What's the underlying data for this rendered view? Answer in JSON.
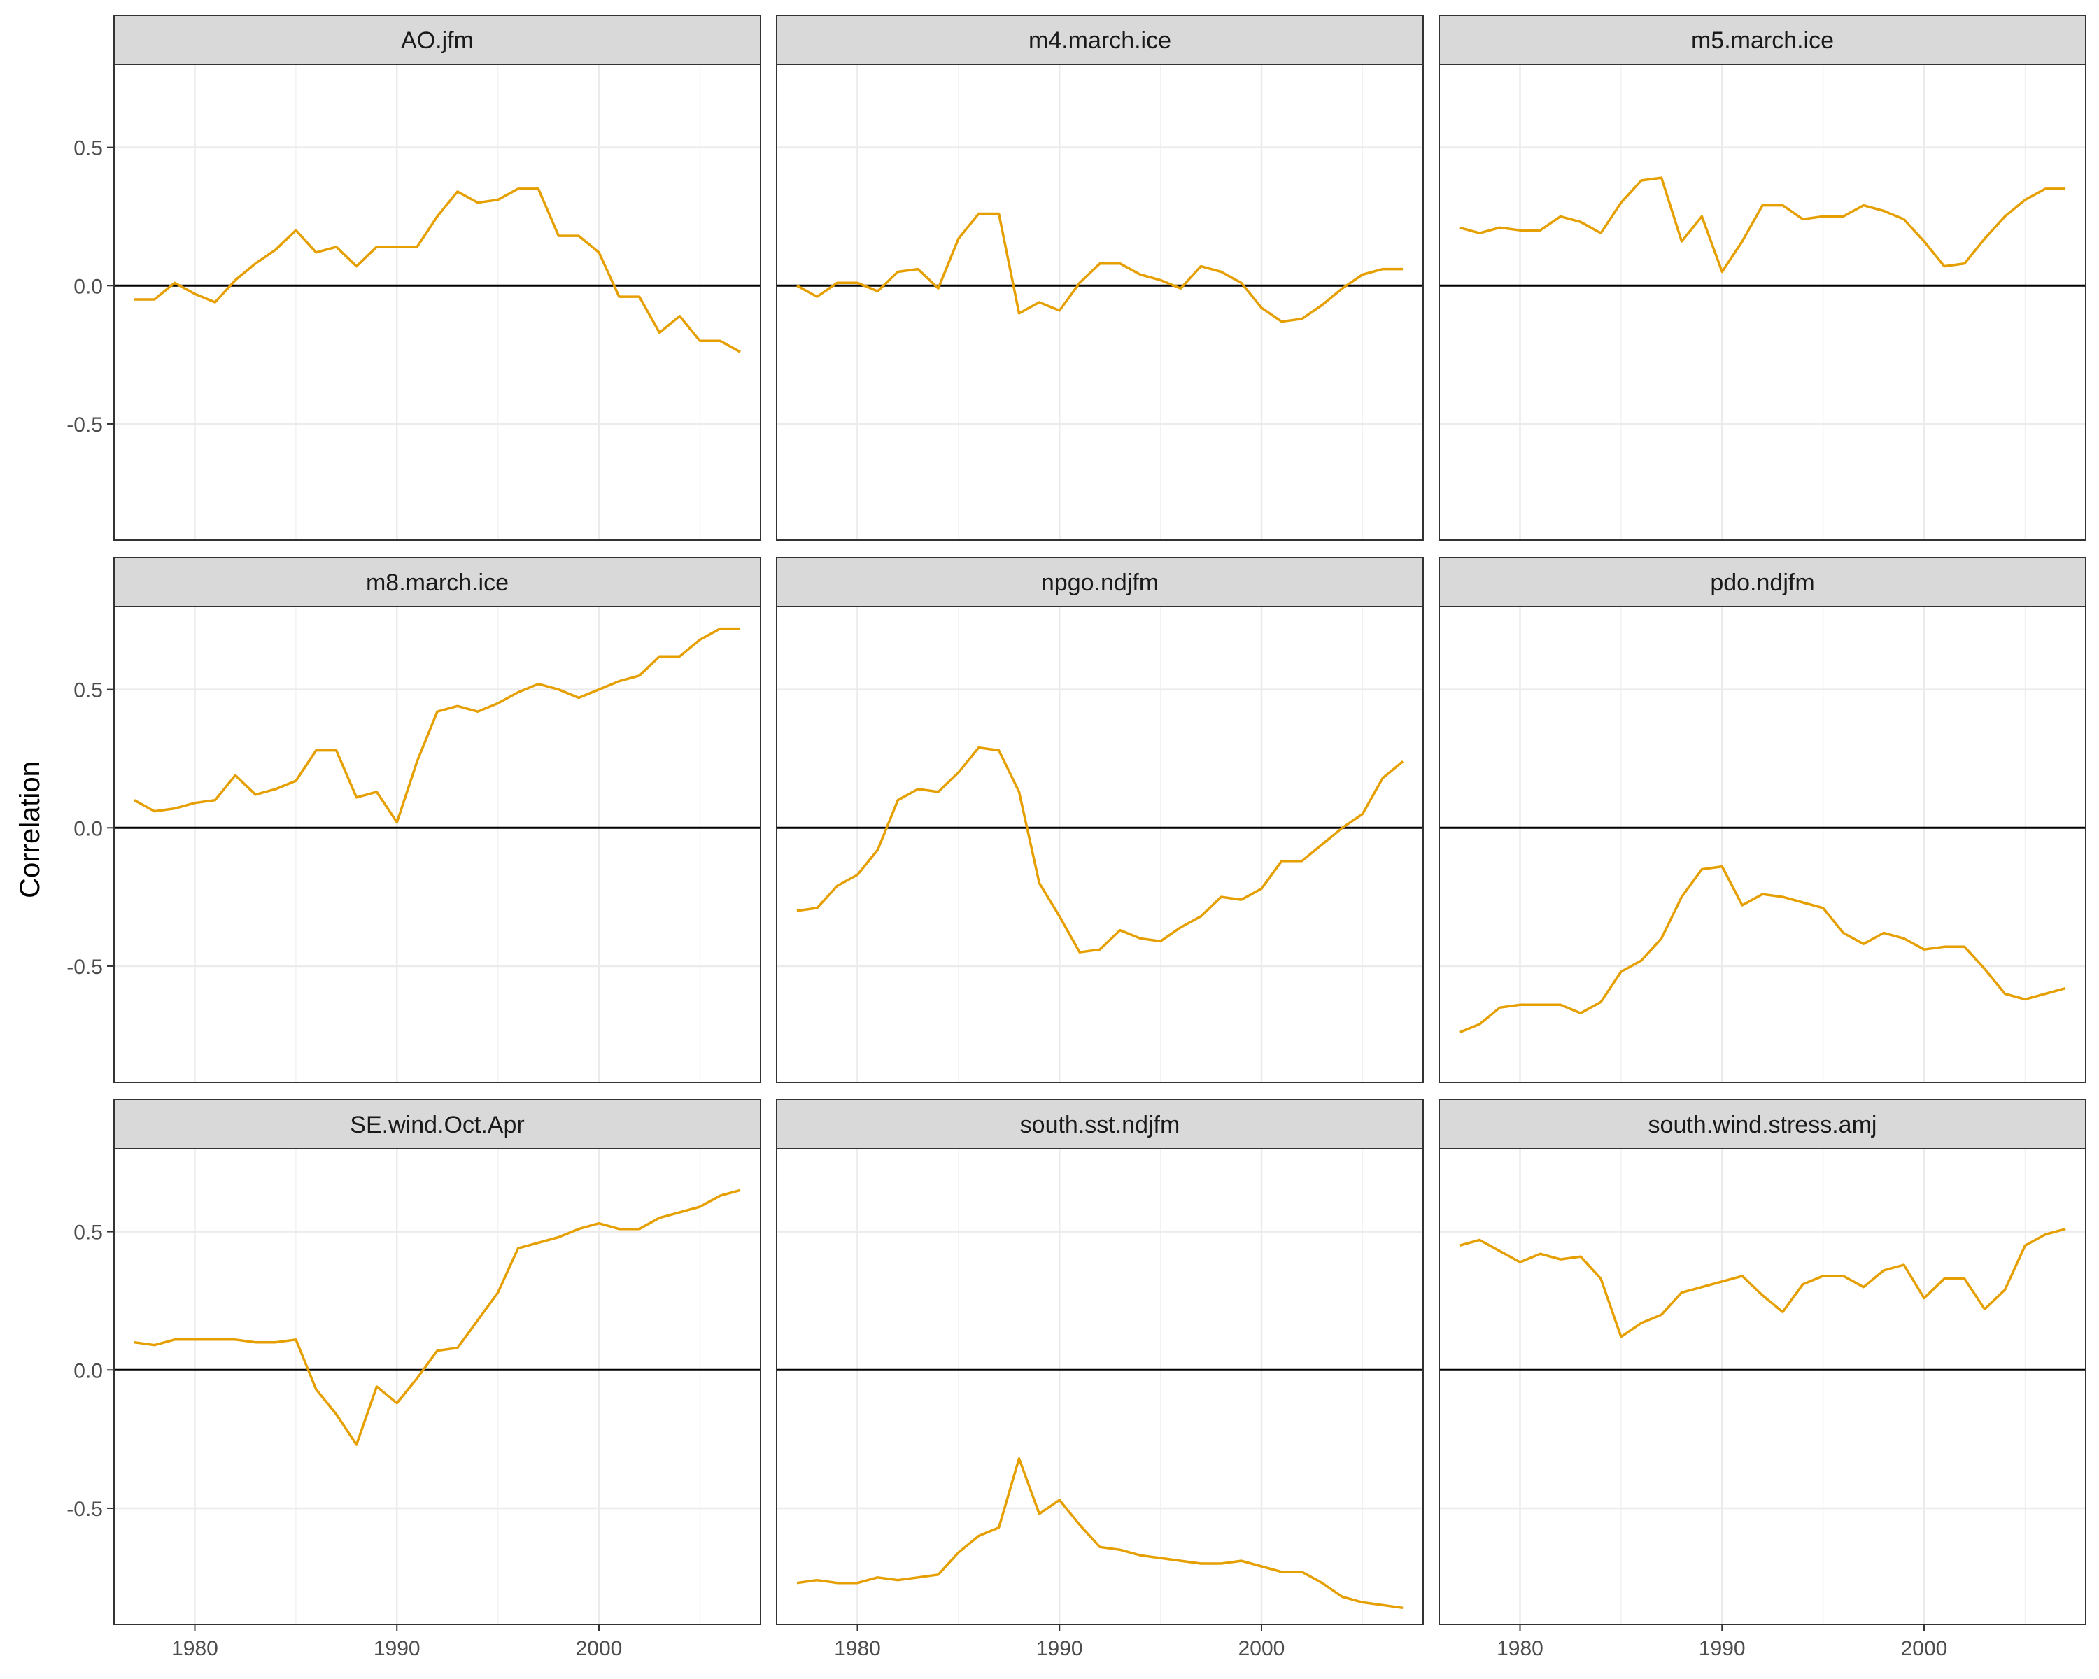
{
  "chart_data": {
    "type": "line",
    "layout": "facet-grid 3x3",
    "ylabel": "Correlation",
    "xlabel": "",
    "xlim": [
      1976,
      2008
    ],
    "ylim": [
      -0.92,
      0.8
    ],
    "x_ticks": [
      1980,
      1990,
      2000
    ],
    "y_ticks": [
      0.5,
      0.0,
      -0.5
    ],
    "y_tick_labels": [
      "0.5",
      "0.0",
      "-0.5"
    ],
    "reference_line_y": 0,
    "grid": true,
    "line_color": "#E69F00",
    "years": [
      1977,
      1978,
      1979,
      1980,
      1981,
      1982,
      1983,
      1984,
      1985,
      1986,
      1987,
      1988,
      1989,
      1990,
      1991,
      1992,
      1993,
      1994,
      1995,
      1996,
      1997,
      1998,
      1999,
      2000,
      2001,
      2002,
      2003,
      2004,
      2005,
      2006,
      2007
    ],
    "panels": [
      {
        "title": "AO.jfm",
        "values": [
          -0.05,
          -0.05,
          0.01,
          -0.03,
          -0.06,
          0.02,
          0.08,
          0.13,
          0.2,
          0.12,
          0.14,
          0.07,
          0.14,
          0.14,
          0.14,
          0.25,
          0.34,
          0.3,
          0.31,
          0.35,
          0.35,
          0.18,
          0.18,
          0.12,
          -0.04,
          -0.04,
          -0.17,
          -0.11,
          -0.2,
          -0.2,
          -0.24
        ]
      },
      {
        "title": "m4.march.ice",
        "values": [
          0.0,
          -0.04,
          0.01,
          0.01,
          -0.02,
          0.05,
          0.06,
          -0.01,
          0.17,
          0.26,
          0.26,
          -0.1,
          -0.06,
          -0.09,
          0.01,
          0.08,
          0.08,
          0.04,
          0.02,
          -0.01,
          0.07,
          0.05,
          0.01,
          -0.08,
          -0.13,
          -0.12,
          -0.07,
          -0.01,
          0.04,
          0.06,
          0.06
        ]
      },
      {
        "title": "m5.march.ice",
        "values": [
          0.21,
          0.19,
          0.21,
          0.2,
          0.2,
          0.25,
          0.23,
          0.19,
          0.3,
          0.38,
          0.39,
          0.16,
          0.25,
          0.05,
          0.16,
          0.29,
          0.29,
          0.24,
          0.25,
          0.25,
          0.29,
          0.27,
          0.24,
          0.16,
          0.07,
          0.08,
          0.17,
          0.25,
          0.31,
          0.35,
          0.35
        ]
      },
      {
        "title": "m8.march.ice",
        "values": [
          0.1,
          0.06,
          0.07,
          0.09,
          0.1,
          0.19,
          0.12,
          0.14,
          0.17,
          0.28,
          0.28,
          0.11,
          0.13,
          0.02,
          0.24,
          0.42,
          0.44,
          0.42,
          0.45,
          0.49,
          0.52,
          0.5,
          0.47,
          0.5,
          0.53,
          0.55,
          0.62,
          0.62,
          0.68,
          0.72,
          0.72
        ]
      },
      {
        "title": "npgo.ndjfm",
        "values": [
          -0.3,
          -0.29,
          -0.21,
          -0.17,
          -0.08,
          0.1,
          0.14,
          0.13,
          0.2,
          0.29,
          0.28,
          0.13,
          -0.2,
          -0.32,
          -0.45,
          -0.44,
          -0.37,
          -0.4,
          -0.41,
          -0.36,
          -0.32,
          -0.25,
          -0.26,
          -0.22,
          -0.12,
          -0.12,
          -0.06,
          0.0,
          0.05,
          0.18,
          0.24
        ]
      },
      {
        "title": "pdo.ndjfm",
        "values": [
          -0.74,
          -0.71,
          -0.65,
          -0.64,
          -0.64,
          -0.64,
          -0.67,
          -0.63,
          -0.52,
          -0.48,
          -0.4,
          -0.25,
          -0.15,
          -0.14,
          -0.28,
          -0.24,
          -0.25,
          -0.27,
          -0.29,
          -0.38,
          -0.42,
          -0.38,
          -0.4,
          -0.44,
          -0.43,
          -0.43,
          -0.51,
          -0.6,
          -0.62,
          -0.6,
          -0.58
        ]
      },
      {
        "title": "SE.wind.Oct.Apr",
        "values": [
          0.1,
          0.09,
          0.11,
          0.11,
          0.11,
          0.11,
          0.1,
          0.1,
          0.11,
          -0.07,
          -0.16,
          -0.27,
          -0.06,
          -0.12,
          -0.03,
          0.07,
          0.08,
          0.18,
          0.28,
          0.44,
          0.46,
          0.48,
          0.51,
          0.53,
          0.51,
          0.51,
          0.55,
          0.57,
          0.59,
          0.63,
          0.65
        ]
      },
      {
        "title": "south.sst.ndjfm",
        "values": [
          -0.77,
          -0.76,
          -0.77,
          -0.77,
          -0.75,
          -0.76,
          -0.75,
          -0.74,
          -0.66,
          -0.6,
          -0.57,
          -0.32,
          -0.52,
          -0.47,
          -0.56,
          -0.64,
          -0.65,
          -0.67,
          -0.68,
          -0.69,
          -0.7,
          -0.7,
          -0.69,
          -0.71,
          -0.73,
          -0.73,
          -0.77,
          -0.82,
          -0.84,
          -0.85,
          -0.86
        ]
      },
      {
        "title": "south.wind.stress.amj",
        "values": [
          0.45,
          0.47,
          0.43,
          0.39,
          0.42,
          0.4,
          0.41,
          0.33,
          0.12,
          0.17,
          0.2,
          0.28,
          0.3,
          0.32,
          0.34,
          0.27,
          0.21,
          0.31,
          0.34,
          0.34,
          0.3,
          0.36,
          0.38,
          0.26,
          0.33,
          0.33,
          0.22,
          0.29,
          0.45,
          0.49,
          0.51
        ]
      }
    ]
  }
}
